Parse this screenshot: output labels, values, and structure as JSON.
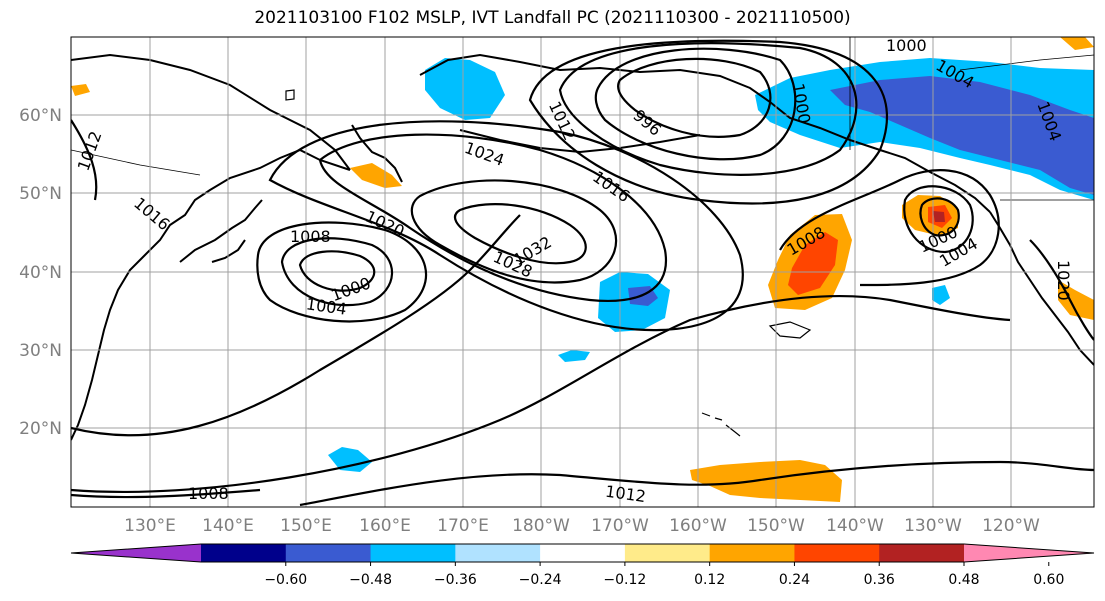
{
  "title": "2021103100 F102 MSLP, IVT Landfall PC (2021110300 - 2021110500)",
  "map": {
    "lat_labels": [
      "60°N",
      "50°N",
      "40°N",
      "30°N",
      "20°N"
    ],
    "lon_labels": [
      "130°E",
      "140°E",
      "150°E",
      "160°E",
      "170°E",
      "180°W",
      "170°W",
      "160°W",
      "150°W",
      "140°W",
      "130°W",
      "120°W"
    ],
    "contour_labels": [
      "1012",
      "1016",
      "1008",
      "1004",
      "1000",
      "1020",
      "1024",
      "1028",
      "1032",
      "1012",
      "1016",
      "996",
      "1000",
      "1004",
      "1008",
      "1000",
      "1004",
      "1020",
      "1008",
      "1012",
      "1000",
      "1004"
    ]
  },
  "colorbar": {
    "ticks": [
      "−0.60",
      "−0.48",
      "−0.36",
      "−0.24",
      "−0.12",
      "0.12",
      "0.24",
      "0.36",
      "0.48",
      "0.60"
    ],
    "colors": [
      "#9932cc",
      "#00008b",
      "#3a5bd1",
      "#00bfff",
      "#b0e2ff",
      "#ffffff",
      "#ffeb8a",
      "#ffa500",
      "#ff4500",
      "#b22222",
      "#ff88b2"
    ]
  }
}
